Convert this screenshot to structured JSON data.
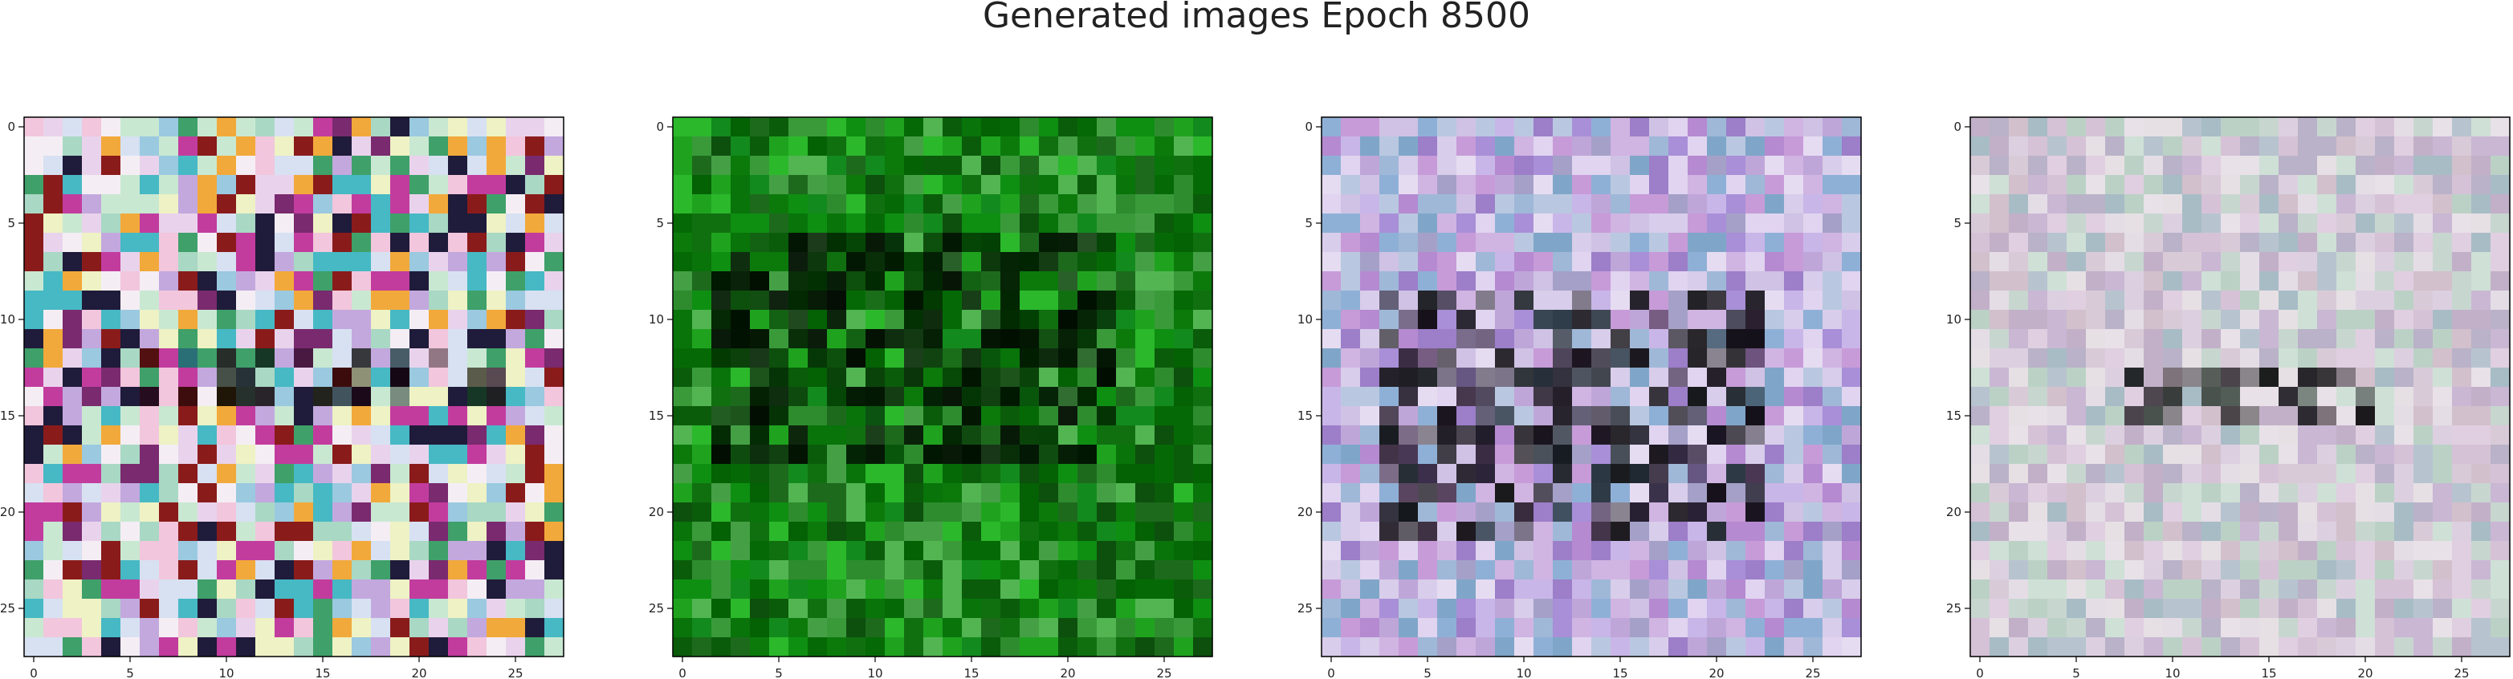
{
  "figure": {
    "suptitle": "Generated images Epoch 8500"
  },
  "chart_data": [
    {
      "type": "heatmap",
      "title": "",
      "xlabel": "",
      "ylabel": "",
      "xlim": [
        0,
        27
      ],
      "ylim": [
        27,
        0
      ],
      "grid": false,
      "xticks": [
        "0",
        "5",
        "10",
        "15",
        "20",
        "25"
      ],
      "yticks": [
        "0",
        "5",
        "10",
        "15",
        "20",
        "25"
      ],
      "rows": 28,
      "cols": 28,
      "palette": [
        "#f4eef4",
        "#e9d3ec",
        "#c9e8d2",
        "#d7e1f2",
        "#f2c6dc",
        "#a9d8c4",
        "#eef2c4",
        "#c3a8de",
        "#9ac9e0",
        "#7a2a6e",
        "#1f1b3a",
        "#c23c9e",
        "#f2a93b",
        "#3fa06a",
        "#8a1b1b",
        "#46b9c4"
      ],
      "dark_band_rows": [
        12,
        14
      ],
      "dark_band_cols": [
        5,
        24
      ]
    },
    {
      "type": "heatmap",
      "title": "",
      "xlabel": "",
      "ylabel": "",
      "xlim": [
        0,
        27
      ],
      "ylim": [
        27,
        0
      ],
      "grid": false,
      "xticks": [
        "0",
        "5",
        "10",
        "15",
        "20",
        "25"
      ],
      "yticks": [
        "0",
        "5",
        "10",
        "15",
        "20",
        "25"
      ],
      "rows": 28,
      "cols": 28,
      "palette": [
        "#0b7a0b",
        "#0e8f12",
        "#056a05",
        "#1fa31f",
        "#0a5c0a",
        "#2bb82b",
        "#046104",
        "#138a1d",
        "#3a9a3a",
        "#0d4f0d",
        "#52b552",
        "#08740a",
        "#1d6a1d",
        "#2e8c2e",
        "#107010",
        "#45a045"
      ],
      "dark_band_rows": [
        6,
        17
      ],
      "dark_band_cols": [
        2,
        22
      ]
    },
    {
      "type": "heatmap",
      "title": "",
      "xlabel": "",
      "ylabel": "",
      "xlim": [
        0,
        27
      ],
      "ylim": [
        27,
        0
      ],
      "grid": false,
      "xticks": [
        "0",
        "5",
        "10",
        "15",
        "20",
        "25"
      ],
      "yticks": [
        "0",
        "5",
        "10",
        "15",
        "20",
        "25"
      ],
      "rows": 28,
      "cols": 28,
      "palette": [
        "#c9b6e8",
        "#a88fd8",
        "#d8cdea",
        "#9c7ec9",
        "#bfa6d9",
        "#e0d4f0",
        "#8fb0d6",
        "#b58ad1",
        "#cfc2e4",
        "#a5a0c8",
        "#c79bd8",
        "#d0b4e2",
        "#7fa6c8",
        "#e6dcf2",
        "#b9c8e0",
        "#9fb8d8"
      ],
      "dark_band_rows": [
        9,
        21
      ],
      "dark_band_cols": [
        3,
        22
      ]
    },
    {
      "type": "heatmap",
      "title": "",
      "xlabel": "",
      "ylabel": "",
      "xlim": [
        0,
        27
      ],
      "ylim": [
        27,
        0
      ],
      "grid": false,
      "xticks": [
        "0",
        "5",
        "10",
        "15",
        "20",
        "25"
      ],
      "yticks": [
        "0",
        "5",
        "10",
        "15",
        "20",
        "25"
      ],
      "rows": 28,
      "cols": 28,
      "palette": [
        "#dcd0e0",
        "#c9b7d4",
        "#e4dde6",
        "#b7c4cf",
        "#d6c2d6",
        "#cfe0d6",
        "#e8e1e8",
        "#c2b0c8",
        "#bcd1c6",
        "#d9cad8",
        "#a8bcc6",
        "#e0cfe0",
        "#c8d6d0",
        "#d2c0cc",
        "#b9b2c8",
        "#e6e0e4"
      ],
      "dark_band_rows": [
        13,
        15
      ],
      "dark_band_cols": [
        8,
        21
      ]
    }
  ]
}
